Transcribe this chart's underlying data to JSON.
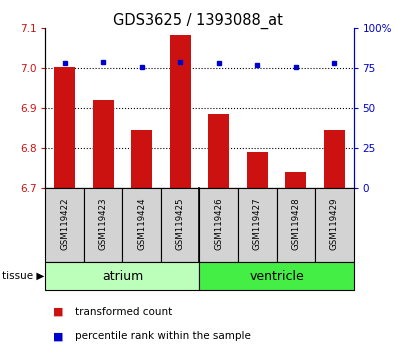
{
  "title": "GDS3625 / 1393088_at",
  "samples": [
    "GSM119422",
    "GSM119423",
    "GSM119424",
    "GSM119425",
    "GSM119426",
    "GSM119427",
    "GSM119428",
    "GSM119429"
  ],
  "red_values": [
    7.003,
    6.921,
    6.845,
    7.083,
    6.885,
    6.79,
    6.74,
    6.845
  ],
  "blue_values": [
    78,
    79,
    76,
    79,
    78,
    77,
    76,
    78
  ],
  "ylim_left": [
    6.7,
    7.1
  ],
  "ylim_right": [
    0,
    100
  ],
  "yticks_left": [
    6.7,
    6.8,
    6.9,
    7.0,
    7.1
  ],
  "yticks_right": [
    0,
    25,
    50,
    75,
    100
  ],
  "ytick_labels_right": [
    "0",
    "25",
    "50",
    "75",
    "100%"
  ],
  "hlines": [
    6.8,
    6.9,
    7.0
  ],
  "atrium_color_light": "#bbffbb",
  "atrium_color_dark": "#44ee44",
  "bar_color": "#cc1111",
  "dot_color": "#0000cc",
  "legend_items": [
    "transformed count",
    "percentile rank within the sample"
  ],
  "bar_width": 0.55,
  "ybase": 6.7
}
